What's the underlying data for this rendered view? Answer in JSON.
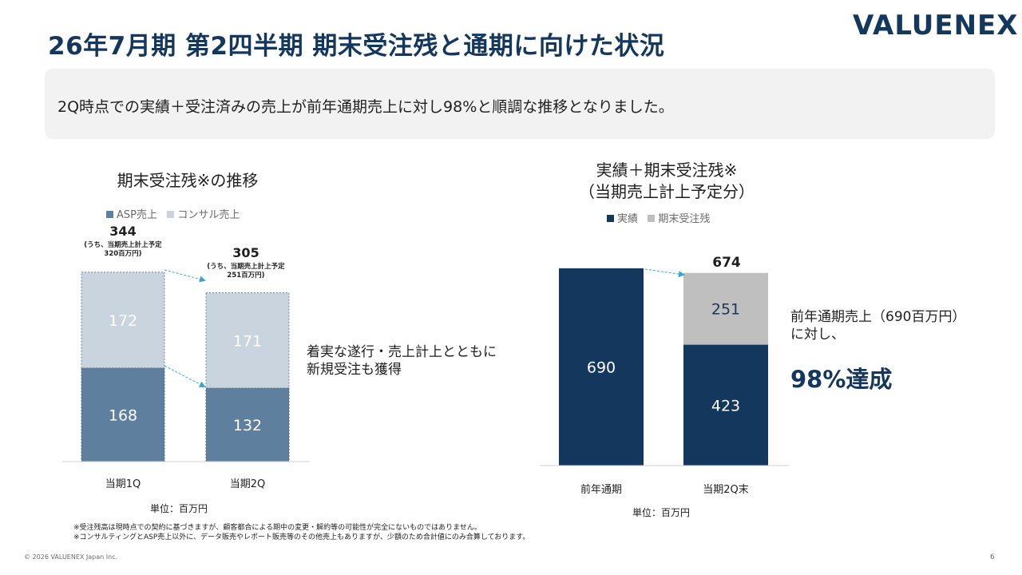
{
  "header": {
    "title": "26年7月期 第2四半期 期末受注残と通期に向けた状況",
    "logo": "VALUENEX"
  },
  "summary": "2Q時点での実績＋受注済みの売上が前年通期売上に対し98%と順調な推移となりました。",
  "left_chart_notes": {
    "totals": [
      "344",
      "305"
    ],
    "subnotes": [
      [
        "(うち、当期売上計上予定",
        "320百万円)"
      ],
      [
        "(うち、当期売上計上予定",
        "251百万円)"
      ]
    ],
    "remark": [
      "着実な遂行・売上計上とともに",
      "新規受注も獲得"
    ]
  },
  "right_chart_notes": {
    "remark": [
      "前年通期売上（690百万円）",
      "に対し、"
    ],
    "highlight": "98%達成"
  },
  "footnotes": [
    "※受注残高は現時点での契約に基づきますが、顧客都合による期中の変更・解約等の可能性が完全にないものではありません。",
    "※コンサルティングとASP売上以外に、データ販売やレポート販売等のその他売上もありますが、少額のため合計値にのみ合算しております。"
  ],
  "footer": {
    "copyright": "© 2026 VALUENEX Japan Inc.",
    "page_number": "6"
  },
  "colors": {
    "navy": "#14375e",
    "asp": "#5f7f9e",
    "consul": "#c9d4df",
    "grey": "#bfbfbf",
    "arrow": "#3aa6cf"
  },
  "chart_data": [
    {
      "type": "bar",
      "stacked": true,
      "title": "期末受注残※の推移",
      "categories": [
        "当期1Q",
        "当期2Q"
      ],
      "series": [
        {
          "name": "ASP売上",
          "values": [
            168,
            132
          ]
        },
        {
          "name": "コンサル売上",
          "values": [
            172,
            171
          ]
        }
      ],
      "unit_label": "単位：百万円",
      "legend_position": "top"
    },
    {
      "type": "bar",
      "stacked": true,
      "title": "実績＋期末受注残※",
      "subtitle": "（当期売上計上予定分）",
      "categories": [
        "前年通期",
        "当期2Q末"
      ],
      "series": [
        {
          "name": "実績",
          "values": [
            690,
            423
          ]
        },
        {
          "name": "期末受注残",
          "values": [
            0,
            251
          ]
        }
      ],
      "totals": [
        "",
        "674"
      ],
      "unit_label": "単位：百万円",
      "legend_position": "top"
    }
  ]
}
